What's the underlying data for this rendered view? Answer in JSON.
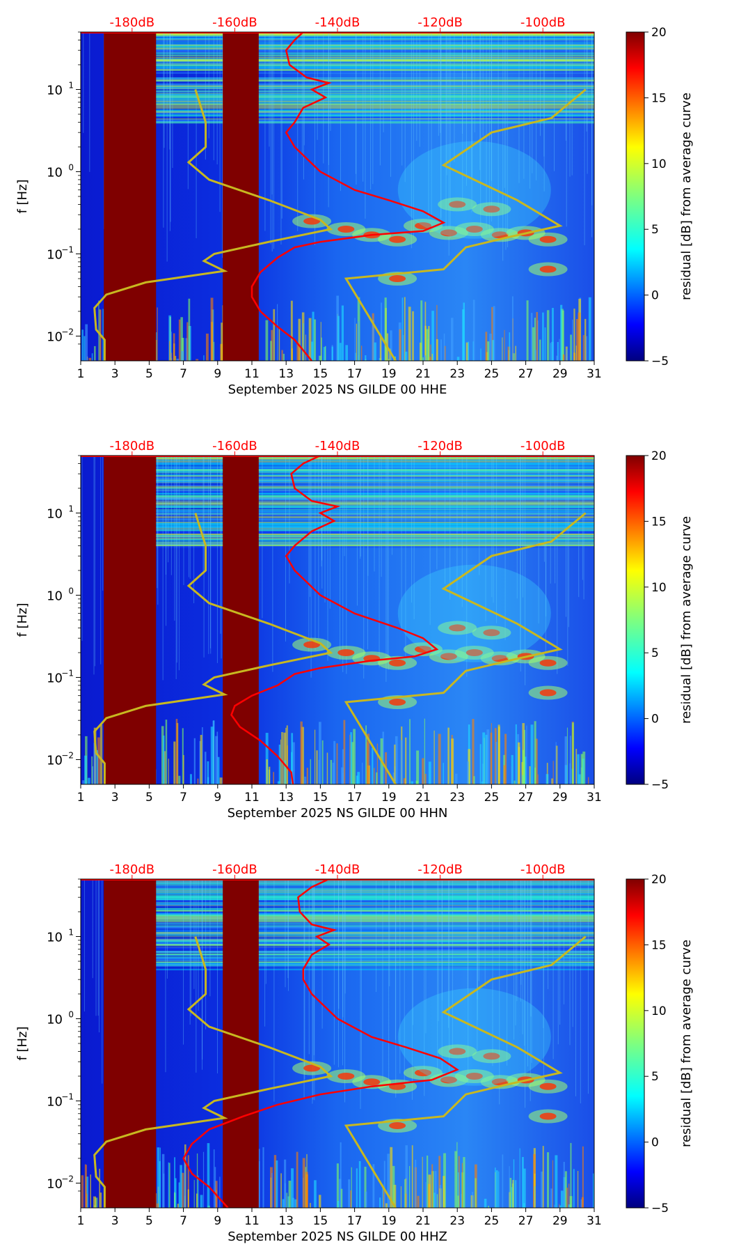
{
  "chart_data": [
    {
      "type": "heatmap",
      "subtype": "spectrogram-residual",
      "xlabel": "September 2025 NS GILDE 00 HHE",
      "ylabel": "f [Hz]",
      "x_ticks": [
        "1",
        "3",
        "5",
        "7",
        "9",
        "11",
        "13",
        "15",
        "17",
        "19",
        "21",
        "23",
        "25",
        "27",
        "29",
        "31"
      ],
      "x_range": [
        1,
        31
      ],
      "y_ticks": [
        {
          "label": "10",
          "exp": "−2",
          "value": 0.01
        },
        {
          "label": "10",
          "exp": "−1",
          "value": 0.1
        },
        {
          "label": "10",
          "exp": "0",
          "value": 1
        },
        {
          "label": "10",
          "exp": "1",
          "value": 10
        }
      ],
      "y_range": [
        0.005,
        50
      ],
      "y_scale": "log",
      "top_axis_ticks": [
        "-180dB",
        "-160dB",
        "-140dB",
        "-120dB",
        "-100dB"
      ],
      "top_axis_color": "#ff0000",
      "colorbar": {
        "label": "residual [dB] from average curve",
        "ticks": [
          "20",
          "15",
          "10",
          "5",
          "0",
          "−5"
        ],
        "range": [
          -5,
          20
        ],
        "colormap": "jet"
      },
      "gaps": [
        [
          2.35,
          5.4
        ],
        [
          9.3,
          11.4
        ]
      ],
      "red_curve": {
        "points": [
          [
            14,
            50
          ],
          [
            13.5,
            40
          ],
          [
            13,
            30
          ],
          [
            13.2,
            20
          ],
          [
            14.2,
            14
          ],
          [
            15.5,
            12
          ],
          [
            14.5,
            10
          ],
          [
            15.3,
            8
          ],
          [
            14,
            6
          ],
          [
            13.5,
            4
          ],
          [
            13,
            3
          ],
          [
            13.5,
            2
          ],
          [
            15,
            1
          ],
          [
            17,
            0.6
          ],
          [
            19,
            0.45
          ],
          [
            21,
            0.33
          ],
          [
            22.2,
            0.24
          ],
          [
            21,
            0.19
          ],
          [
            18,
            0.17
          ],
          [
            15,
            0.14
          ],
          [
            13.5,
            0.12
          ],
          [
            12.5,
            0.09
          ],
          [
            11.5,
            0.06
          ],
          [
            11,
            0.04
          ],
          [
            11,
            0.03
          ],
          [
            11.5,
            0.02
          ],
          [
            12.5,
            0.013
          ],
          [
            13.5,
            0.009
          ],
          [
            14.5,
            0.005
          ]
        ]
      },
      "yellow_curve": {
        "points": [
          [
            2.4,
            0.005
          ],
          [
            2.4,
            0.009
          ],
          [
            1.9,
            0.012
          ],
          [
            1.8,
            0.022
          ],
          [
            2.5,
            0.032
          ],
          [
            4.8,
            0.045
          ],
          [
            9.4,
            0.062
          ],
          [
            8.2,
            0.082
          ],
          [
            8.8,
            0.1
          ],
          [
            12,
            0.14
          ],
          [
            15.6,
            0.2
          ],
          [
            15,
            0.26
          ],
          [
            12,
            0.45
          ],
          [
            8.5,
            0.8
          ],
          [
            7.3,
            1.3
          ],
          [
            8.3,
            2
          ],
          [
            8.3,
            4
          ],
          [
            7.7,
            10
          ]
        ],
        "segment2": [
          [
            19.4,
            0.005
          ],
          [
            16.5,
            0.05
          ],
          [
            22.2,
            0.065
          ],
          [
            23.5,
            0.12
          ],
          [
            26,
            0.16
          ],
          [
            29,
            0.22
          ],
          [
            26.5,
            0.45
          ],
          [
            22.2,
            1.2
          ],
          [
            25,
            3
          ],
          [
            28.5,
            4.5
          ],
          [
            30.5,
            10
          ]
        ]
      }
    },
    {
      "type": "heatmap",
      "subtype": "spectrogram-residual",
      "xlabel": "September 2025 NS GILDE 00 HHN",
      "ylabel": "f [Hz]",
      "x_ticks": [
        "1",
        "3",
        "5",
        "7",
        "9",
        "11",
        "13",
        "15",
        "17",
        "19",
        "21",
        "23",
        "25",
        "27",
        "29",
        "31"
      ],
      "x_range": [
        1,
        31
      ],
      "y_ticks": [
        {
          "label": "10",
          "exp": "−2",
          "value": 0.01
        },
        {
          "label": "10",
          "exp": "−1",
          "value": 0.1
        },
        {
          "label": "10",
          "exp": "0",
          "value": 1
        },
        {
          "label": "10",
          "exp": "1",
          "value": 10
        }
      ],
      "y_range": [
        0.005,
        50
      ],
      "y_scale": "log",
      "top_axis_ticks": [
        "-180dB",
        "-160dB",
        "-140dB",
        "-120dB",
        "-100dB"
      ],
      "top_axis_color": "#ff0000",
      "colorbar": {
        "label": "residual [dB] from average curve",
        "ticks": [
          "20",
          "15",
          "10",
          "5",
          "0",
          "−5"
        ],
        "range": [
          -5,
          20
        ],
        "colormap": "jet"
      },
      "gaps": [
        [
          2.35,
          5.4
        ],
        [
          9.3,
          11.4
        ]
      ],
      "red_curve": {
        "points": [
          [
            15,
            50
          ],
          [
            14,
            40
          ],
          [
            13.3,
            30
          ],
          [
            13.5,
            20
          ],
          [
            14.5,
            14
          ],
          [
            16,
            12
          ],
          [
            15,
            10
          ],
          [
            15.8,
            8
          ],
          [
            14.5,
            6
          ],
          [
            13.5,
            4
          ],
          [
            13,
            3
          ],
          [
            13.5,
            2
          ],
          [
            15,
            1
          ],
          [
            17,
            0.6
          ],
          [
            19.5,
            0.4
          ],
          [
            21,
            0.3
          ],
          [
            21.8,
            0.22
          ],
          [
            20.5,
            0.18
          ],
          [
            18,
            0.16
          ],
          [
            15,
            0.13
          ],
          [
            13.5,
            0.11
          ],
          [
            12.5,
            0.08
          ],
          [
            11,
            0.06
          ],
          [
            10,
            0.045
          ],
          [
            9.8,
            0.035
          ],
          [
            10.3,
            0.025
          ],
          [
            11.5,
            0.017
          ],
          [
            12.5,
            0.011
          ],
          [
            13.3,
            0.007
          ],
          [
            13.4,
            0.005
          ]
        ]
      },
      "yellow_curve": {
        "points": [
          [
            2.4,
            0.005
          ],
          [
            2.4,
            0.009
          ],
          [
            1.9,
            0.012
          ],
          [
            1.8,
            0.022
          ],
          [
            2.5,
            0.032
          ],
          [
            4.8,
            0.045
          ],
          [
            9.4,
            0.062
          ],
          [
            8.2,
            0.082
          ],
          [
            8.8,
            0.1
          ],
          [
            12,
            0.14
          ],
          [
            15.6,
            0.2
          ],
          [
            15,
            0.26
          ],
          [
            12,
            0.45
          ],
          [
            8.5,
            0.8
          ],
          [
            7.3,
            1.3
          ],
          [
            8.3,
            2
          ],
          [
            8.3,
            4
          ],
          [
            7.7,
            10
          ]
        ],
        "segment2": [
          [
            19.4,
            0.005
          ],
          [
            16.5,
            0.05
          ],
          [
            22.2,
            0.065
          ],
          [
            23.5,
            0.12
          ],
          [
            26,
            0.16
          ],
          [
            29,
            0.22
          ],
          [
            26.5,
            0.45
          ],
          [
            22.2,
            1.2
          ],
          [
            25,
            3
          ],
          [
            28.5,
            4.5
          ],
          [
            30.5,
            10
          ]
        ]
      }
    },
    {
      "type": "heatmap",
      "subtype": "spectrogram-residual",
      "xlabel": "September 2025 NS GILDE 00 HHZ",
      "ylabel": "f [Hz]",
      "x_ticks": [
        "1",
        "3",
        "5",
        "7",
        "9",
        "11",
        "13",
        "15",
        "17",
        "19",
        "21",
        "23",
        "25",
        "27",
        "29",
        "31"
      ],
      "x_range": [
        1,
        31
      ],
      "y_ticks": [
        {
          "label": "10",
          "exp": "−2",
          "value": 0.01
        },
        {
          "label": "10",
          "exp": "−1",
          "value": 0.1
        },
        {
          "label": "10",
          "exp": "0",
          "value": 1
        },
        {
          "label": "10",
          "exp": "1",
          "value": 10
        }
      ],
      "y_range": [
        0.005,
        50
      ],
      "y_scale": "log",
      "top_axis_ticks": [
        "-180dB",
        "-160dB",
        "-140dB",
        "-120dB",
        "-100dB"
      ],
      "top_axis_color": "#ff0000",
      "colorbar": {
        "label": "residual [dB] from average curve",
        "ticks": [
          "20",
          "15",
          "10",
          "5",
          "0",
          "−5"
        ],
        "range": [
          -5,
          20
        ],
        "colormap": "jet"
      },
      "gaps": [
        [
          2.35,
          5.4
        ],
        [
          9.3,
          11.4
        ]
      ],
      "red_curve": {
        "points": [
          [
            15.5,
            50
          ],
          [
            14.5,
            40
          ],
          [
            13.7,
            30
          ],
          [
            13.8,
            20
          ],
          [
            14.5,
            14
          ],
          [
            15.8,
            12
          ],
          [
            14.8,
            10
          ],
          [
            15.5,
            8
          ],
          [
            14.5,
            6
          ],
          [
            14,
            4
          ],
          [
            14,
            3
          ],
          [
            14.5,
            2
          ],
          [
            16,
            1
          ],
          [
            18,
            0.6
          ],
          [
            20,
            0.45
          ],
          [
            22,
            0.33
          ],
          [
            23,
            0.24
          ],
          [
            21.5,
            0.18
          ],
          [
            18,
            0.15
          ],
          [
            15,
            0.12
          ],
          [
            12.5,
            0.09
          ],
          [
            10.5,
            0.065
          ],
          [
            8.5,
            0.045
          ],
          [
            7.5,
            0.03
          ],
          [
            7,
            0.02
          ],
          [
            7.5,
            0.013
          ],
          [
            8.5,
            0.009
          ],
          [
            9.6,
            0.005
          ]
        ]
      },
      "yellow_curve": {
        "points": [
          [
            2.4,
            0.005
          ],
          [
            2.4,
            0.009
          ],
          [
            1.9,
            0.012
          ],
          [
            1.8,
            0.022
          ],
          [
            2.5,
            0.032
          ],
          [
            4.8,
            0.045
          ],
          [
            9.4,
            0.062
          ],
          [
            8.2,
            0.082
          ],
          [
            8.8,
            0.1
          ],
          [
            12,
            0.14
          ],
          [
            15.6,
            0.2
          ],
          [
            15,
            0.26
          ],
          [
            12,
            0.45
          ],
          [
            8.5,
            0.8
          ],
          [
            7.3,
            1.3
          ],
          [
            8.3,
            2
          ],
          [
            8.3,
            4
          ],
          [
            7.7,
            10
          ]
        ],
        "segment2": [
          [
            19.4,
            0.005
          ],
          [
            16.5,
            0.05
          ],
          [
            22.2,
            0.065
          ],
          [
            23.5,
            0.12
          ],
          [
            26,
            0.16
          ],
          [
            29,
            0.22
          ],
          [
            26.5,
            0.45
          ],
          [
            22.2,
            1.2
          ],
          [
            25,
            3
          ],
          [
            28.5,
            4.5
          ],
          [
            30.5,
            10
          ]
        ]
      }
    }
  ]
}
